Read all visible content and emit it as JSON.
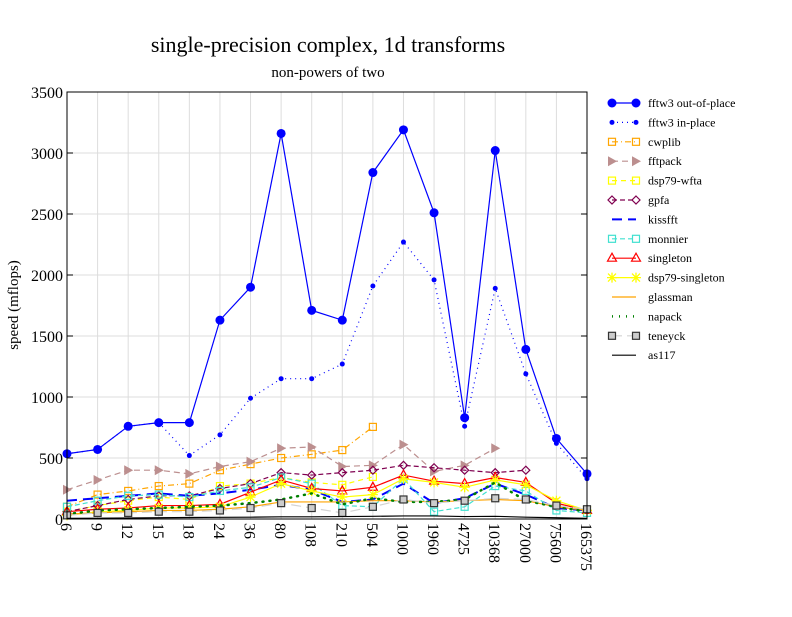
{
  "chart_data": {
    "type": "line",
    "title": "single-precision complex, 1d transforms",
    "subtitle": "non-powers of two",
    "xlabel": "",
    "ylabel": "speed (mflops)",
    "ylim": [
      0,
      3500
    ],
    "yticks": [
      "0",
      "500",
      "1000",
      "1500",
      "2000",
      "2500",
      "3000",
      "3500"
    ],
    "grid": true,
    "legend_placement": "right",
    "categories": [
      "6",
      "9",
      "12",
      "15",
      "18",
      "24",
      "36",
      "80",
      "108",
      "210",
      "504",
      "1000",
      "1960",
      "4725",
      "10368",
      "27000",
      "75600",
      "165375"
    ],
    "series": [
      {
        "name": "fftw3 out-of-place",
        "color": "#0000ff",
        "dash": "",
        "marker": "bigdot",
        "values": [
          535,
          570,
          760,
          790,
          790,
          1630,
          1900,
          3160,
          1710,
          1630,
          2840,
          3190,
          2510,
          830,
          3020,
          1390,
          660,
          370
        ]
      },
      {
        "name": "fftw3 in-place",
        "color": "#0000ff",
        "dash": "1,4",
        "marker": "dot",
        "values": [
          535,
          570,
          760,
          790,
          520,
          690,
          990,
          1150,
          1150,
          1270,
          1910,
          2270,
          1960,
          760,
          1890,
          1190,
          620,
          330
        ]
      },
      {
        "name": "cwplib",
        "color": "#ffa500",
        "dash": "6,3,1,3",
        "marker": "square",
        "values": [
          100,
          200,
          230,
          270,
          290,
          400,
          450,
          500,
          530,
          565,
          755,
          null,
          null,
          null,
          null,
          null,
          null,
          null
        ]
      },
      {
        "name": "fftpack",
        "color": "#bc8f8f",
        "dash": "6,4",
        "marker": "triangle-right",
        "values": [
          240,
          320,
          400,
          400,
          370,
          430,
          470,
          580,
          590,
          430,
          440,
          610,
          390,
          440,
          580,
          null,
          null,
          null
        ]
      },
      {
        "name": "dsp79-wfta",
        "color": "#ffff00",
        "dash": "5,4",
        "marker": "square",
        "values": [
          60,
          110,
          150,
          180,
          160,
          270,
          290,
          340,
          300,
          280,
          345,
          null,
          null,
          null,
          null,
          null,
          null,
          null
        ]
      },
      {
        "name": "gpfa",
        "color": "#800050",
        "dash": "5,3",
        "marker": "diamond",
        "values": [
          60,
          110,
          160,
          190,
          190,
          250,
          290,
          380,
          360,
          380,
          400,
          440,
          420,
          400,
          380,
          400,
          null,
          null
        ]
      },
      {
        "name": "kissfft",
        "color": "#0000ff",
        "dash": "10,6",
        "marker": "none",
        "values": [
          150,
          170,
          190,
          210,
          190,
          210,
          240,
          280,
          240,
          140,
          160,
          290,
          130,
          170,
          290,
          200,
          90,
          70
        ]
      },
      {
        "name": "monnier",
        "color": "#40e0d0",
        "dash": "5,3",
        "marker": "square",
        "values": [
          100,
          150,
          190,
          200,
          180,
          230,
          260,
          340,
          290,
          110,
          100,
          330,
          60,
          100,
          270,
          230,
          70,
          50
        ]
      },
      {
        "name": "singleton",
        "color": "#ff0000",
        "dash": "",
        "marker": "triangle",
        "values": [
          60,
          80,
          90,
          110,
          110,
          120,
          220,
          320,
          250,
          230,
          260,
          360,
          310,
          290,
          340,
          300,
          130,
          70
        ]
      },
      {
        "name": "dsp79-singleton",
        "color": "#ffff00",
        "dash": "",
        "marker": "star",
        "values": [
          30,
          60,
          70,
          90,
          90,
          100,
          180,
          290,
          230,
          180,
          200,
          330,
          300,
          260,
          320,
          280,
          150,
          70
        ]
      },
      {
        "name": "glassman",
        "color": "#ffa500",
        "dash": "",
        "marker": "none",
        "values": [
          40,
          50,
          60,
          70,
          70,
          80,
          100,
          140,
          140,
          140,
          150,
          150,
          140,
          150,
          160,
          150,
          100,
          70
        ]
      },
      {
        "name": "napack",
        "color": "#008000",
        "dash": "1,6",
        "marker": "none",
        "values": [
          40,
          70,
          80,
          90,
          100,
          110,
          130,
          160,
          210,
          120,
          170,
          140,
          140,
          160,
          300,
          150,
          100,
          60
        ]
      },
      {
        "name": "teneyck",
        "color": "#d3d3d3",
        "dash": "10,5",
        "marker": "graysquare",
        "values": [
          30,
          50,
          50,
          60,
          60,
          70,
          90,
          130,
          90,
          50,
          100,
          160,
          130,
          150,
          170,
          160,
          110,
          80
        ]
      },
      {
        "name": "as117",
        "color": "#000000",
        "dash": "",
        "marker": "none",
        "values": [
          5,
          6,
          8,
          10,
          12,
          14,
          15,
          18,
          18,
          20,
          22,
          25,
          25,
          20,
          22,
          15,
          10,
          5
        ]
      }
    ]
  }
}
